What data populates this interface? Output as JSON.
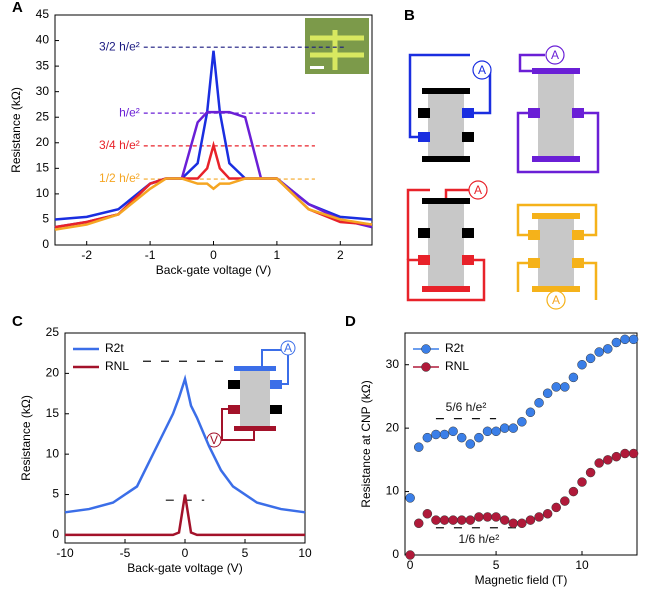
{
  "chart_data": [
    {
      "type": "line",
      "panel": "A",
      "xlabel": "Back-gate voltage (V)",
      "ylabel": "Resistance (kΩ)",
      "xlim": [
        -2.5,
        2.5
      ],
      "xticks": [
        -2,
        -1,
        0,
        1,
        2
      ],
      "ylim": [
        0,
        45
      ],
      "yticks": [
        0,
        5,
        10,
        15,
        20,
        25,
        30,
        35,
        40,
        45
      ],
      "x": [
        -2.5,
        -2,
        -1.5,
        -1,
        -0.75,
        -0.5,
        -0.25,
        -0.1,
        0,
        0.1,
        0.25,
        0.5,
        0.75,
        1,
        1.5,
        2,
        2.5
      ],
      "series": [
        {
          "color": "#1a2ee0",
          "values": [
            5,
            5.5,
            7,
            12,
            13,
            13,
            16,
            26,
            38,
            26,
            16,
            13,
            13,
            13,
            8,
            5.5,
            5
          ]
        },
        {
          "color": "#6a1fd6",
          "values": [
            3.5,
            4.5,
            6,
            12,
            13,
            13,
            24,
            26,
            26,
            26,
            26,
            25,
            13,
            13,
            8,
            5,
            3.5
          ]
        },
        {
          "color": "#e8222a",
          "values": [
            3.5,
            4.5,
            6,
            12,
            13,
            13,
            13,
            15,
            19.5,
            15,
            13,
            13,
            13,
            13,
            7,
            4.5,
            4
          ]
        },
        {
          "color": "#f5a623",
          "values": [
            3,
            4,
            6,
            11,
            13,
            13,
            12,
            12,
            11,
            12,
            12,
            13,
            13,
            13,
            7,
            5,
            4
          ]
        }
      ],
      "annotations": [
        {
          "text": "3/2 h/e²",
          "y": 38.7,
          "x": [
            -1.1,
            2.1
          ],
          "color": "#1a1a80"
        },
        {
          "text": "h/e²",
          "y": 25.8,
          "x": [
            -1.1,
            1.6
          ],
          "color": "#6a1fd6"
        },
        {
          "text": "3/4 h/e²",
          "y": 19.4,
          "x": [
            -1.1,
            1.6
          ],
          "color": "#e8222a"
        },
        {
          "text": "1/2 h/e²",
          "y": 12.9,
          "x": [
            -1.1,
            1.6
          ],
          "color": "#f5a623"
        }
      ]
    },
    {
      "type": "line",
      "panel": "C",
      "xlabel": "Back-gate voltage (V)",
      "ylabel": "Resistance  (kΩ)",
      "xlim": [
        -10,
        10
      ],
      "xticks": [
        -10,
        -5,
        0,
        5,
        10
      ],
      "ylim": [
        -1,
        25
      ],
      "yticks": [
        0,
        5,
        10,
        15,
        20,
        25
      ],
      "legend": "upper left",
      "x": [
        -10,
        -8,
        -6,
        -4,
        -3,
        -2,
        -1,
        -0.5,
        0,
        0.5,
        1,
        2,
        3,
        4,
        6,
        8,
        10
      ],
      "series": [
        {
          "name": "R2t",
          "color": "#3b6ee8",
          "values": [
            2.8,
            3.2,
            4,
            6,
            9,
            12,
            15,
            17,
            19.3,
            16,
            14.5,
            11,
            8,
            6,
            4,
            3.2,
            2.8
          ]
        },
        {
          "name": "RNL",
          "color": "#a3122a",
          "values": [
            0,
            0,
            0,
            0,
            0,
            0,
            0,
            0.3,
            5,
            0.3,
            0,
            0,
            0,
            0,
            0,
            0,
            0
          ]
        }
      ],
      "annotations": [
        {
          "y": 21.5,
          "x": [
            -3.5,
            3.5
          ],
          "color": "#111"
        },
        {
          "y": 4.3,
          "x": [
            -1.6,
            1.6
          ],
          "color": "#111"
        }
      ],
      "inset_labels": [
        "A",
        "V"
      ]
    },
    {
      "type": "scatter",
      "panel": "D",
      "xlabel": "Magnetic field (T)",
      "ylabel": "Resistance at CNP  (kΩ)",
      "xlim": [
        -0.3,
        13.2
      ],
      "xticks": [
        0,
        5,
        10
      ],
      "ylim": [
        0,
        35
      ],
      "yticks": [
        0,
        10,
        20,
        30
      ],
      "legend": "upper left",
      "x": [
        0,
        0.5,
        1,
        1.5,
        2,
        2.5,
        3,
        3.5,
        4,
        4.5,
        5,
        5.5,
        6,
        6.5,
        7,
        7.5,
        8,
        8.5,
        9,
        9.5,
        10,
        10.5,
        11,
        11.5,
        12,
        12.5,
        13
      ],
      "series": [
        {
          "name": "R2t",
          "color": "#3b7fe8",
          "values": [
            9,
            17,
            18.5,
            19,
            19,
            19.5,
            18.5,
            17.5,
            18.5,
            19.5,
            19.5,
            20,
            20,
            21,
            22.5,
            24,
            25.5,
            26.5,
            26.5,
            28,
            30,
            31,
            32,
            32.5,
            33.5,
            34,
            34
          ]
        },
        {
          "name": "RNL",
          "color": "#b01a3a",
          "values": [
            0,
            5,
            6.5,
            5.5,
            5.5,
            5.5,
            5.5,
            5.5,
            6,
            6,
            6,
            5.5,
            5,
            5,
            5.5,
            6,
            6.5,
            7.5,
            8.5,
            10,
            11.5,
            13,
            14.5,
            15,
            15.5,
            16,
            16
          ]
        }
      ],
      "annotations": [
        {
          "text": "5/6 h/e²",
          "y": 21.5,
          "x": [
            1.5,
            5
          ],
          "color": "#111"
        },
        {
          "text": "1/6 h/e²",
          "y": 4.3,
          "x": [
            1.5,
            6.5
          ],
          "color": "#111"
        }
      ]
    }
  ],
  "diagram": {
    "panel": "B",
    "meters": [
      "A",
      "A",
      "A",
      "A"
    ]
  }
}
